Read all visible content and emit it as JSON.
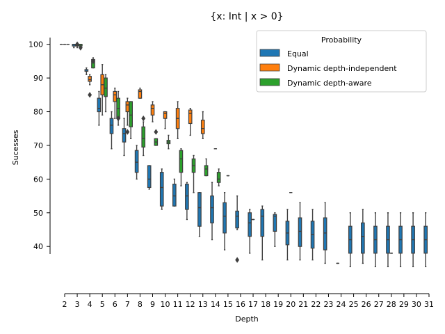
{
  "chart_data": {
    "type": "box",
    "title": "{x: Int | x > 0}",
    "xlabel": "Depth",
    "ylabel": "Sucesses",
    "ylim": [
      26,
      102
    ],
    "yticks": [
      40,
      50,
      60,
      70,
      80,
      90,
      100
    ],
    "categories": [
      "2",
      "3",
      "4",
      "5",
      "6",
      "7",
      "8",
      "9",
      "10",
      "11",
      "12",
      "13",
      "14",
      "15",
      "16",
      "17",
      "18",
      "19",
      "20",
      "21",
      "22",
      "23",
      "24",
      "25",
      "26",
      "27",
      "28",
      "29",
      "30",
      "31"
    ],
    "legend": {
      "title": "Probability",
      "placement": "top-right"
    },
    "series": [
      {
        "name": "Equal",
        "color": "#1f77b4",
        "boxes": [
          {
            "x": "2",
            "min": 100,
            "q1": 100,
            "median": 100,
            "q3": 100,
            "max": 100,
            "outliers": []
          },
          {
            "x": "3",
            "min": 99,
            "q1": 99.5,
            "median": 100,
            "q3": 100,
            "max": 100,
            "outliers": []
          },
          {
            "x": "4",
            "min": 91,
            "q1": 92,
            "median": 92,
            "q3": 92.5,
            "max": 93,
            "outliers": []
          },
          {
            "x": "5",
            "min": 76,
            "q1": 80,
            "median": 81,
            "q3": 84,
            "max": 86,
            "outliers": []
          },
          {
            "x": "6",
            "min": 69,
            "q1": 73.5,
            "median": 76,
            "q3": 78,
            "max": 80,
            "outliers": []
          },
          {
            "x": "7",
            "min": 67,
            "q1": 71,
            "median": 73.5,
            "q3": 75,
            "max": 78,
            "outliers": []
          },
          {
            "x": "8",
            "min": 60,
            "q1": 62,
            "median": 65,
            "q3": 68.5,
            "max": 70,
            "outliers": []
          },
          {
            "x": "9",
            "min": 57,
            "q1": 57.5,
            "median": 60,
            "q3": 64,
            "max": 64,
            "outliers": []
          },
          {
            "x": "10",
            "min": 51,
            "q1": 52,
            "median": 57.5,
            "q3": 62,
            "max": 63,
            "outliers": []
          },
          {
            "x": "11",
            "min": 52,
            "q1": 52,
            "median": 55,
            "q3": 58.5,
            "max": 60,
            "outliers": []
          },
          {
            "x": "12",
            "min": 48,
            "q1": 51,
            "median": 55,
            "q3": 58.5,
            "max": 59,
            "outliers": []
          },
          {
            "x": "13",
            "min": 43,
            "q1": 46,
            "median": 51.5,
            "q3": 56,
            "max": 56,
            "outliers": []
          },
          {
            "x": "14",
            "min": 42,
            "q1": 47,
            "median": 51.5,
            "q3": 55,
            "max": 59,
            "outliers": []
          },
          {
            "x": "15",
            "min": 39,
            "q1": 44,
            "median": 49,
            "q3": 53,
            "max": 56,
            "outliers": []
          },
          {
            "x": "16",
            "min": 45,
            "q1": 45.5,
            "median": 49,
            "q3": 50.5,
            "max": 55,
            "outliers": [
              36
            ]
          },
          {
            "x": "17",
            "min": 38,
            "q1": 43,
            "median": 47,
            "q3": 50,
            "max": 51,
            "outliers": []
          },
          {
            "x": "18",
            "min": 36,
            "q1": 43,
            "median": 49,
            "q3": 51,
            "max": 52,
            "outliers": []
          },
          {
            "x": "19",
            "min": 40,
            "q1": 44.5,
            "median": 49,
            "q3": 49.5,
            "max": 50,
            "outliers": []
          },
          {
            "x": "20",
            "min": 36,
            "q1": 40.5,
            "median": 44,
            "q3": 47.5,
            "max": 51,
            "outliers": []
          },
          {
            "x": "21",
            "min": 36,
            "q1": 40,
            "median": 44.5,
            "q3": 48.5,
            "max": 53,
            "outliers": []
          },
          {
            "x": "22",
            "min": 36,
            "q1": 39.5,
            "median": 43.5,
            "q3": 47.5,
            "max": 51,
            "outliers": []
          },
          {
            "x": "23",
            "min": 35,
            "q1": 39,
            "median": 44,
            "q3": 48.5,
            "max": 53,
            "outliers": []
          },
          {
            "x": "24",
            "min": 35,
            "q1": 35,
            "median": 35,
            "q3": 35,
            "max": 35,
            "outliers": []
          },
          {
            "x": "25",
            "min": 34,
            "q1": 38,
            "median": 42,
            "q3": 46,
            "max": 50,
            "outliers": []
          },
          {
            "x": "26",
            "min": 35,
            "q1": 38,
            "median": 43,
            "q3": 47,
            "max": 51,
            "outliers": []
          },
          {
            "x": "27",
            "min": 34,
            "q1": 38,
            "median": 42,
            "q3": 46,
            "max": 50,
            "outliers": []
          },
          {
            "x": "28",
            "min": 34,
            "q1": 38,
            "median": 42,
            "q3": 46,
            "max": 50,
            "outliers": []
          },
          {
            "x": "29",
            "min": 34,
            "q1": 38,
            "median": 42,
            "q3": 46,
            "max": 50,
            "outliers": []
          },
          {
            "x": "30",
            "min": 34,
            "q1": 38,
            "median": 42,
            "q3": 46,
            "max": 50,
            "outliers": []
          },
          {
            "x": "31",
            "min": 34,
            "q1": 38,
            "median": 42,
            "q3": 46,
            "max": 50,
            "outliers": []
          }
        ]
      },
      {
        "name": "Dynamic depth-independent",
        "color": "#ff7f0e",
        "boxes": [
          {
            "x": "2",
            "min": 100,
            "q1": 100,
            "median": 100,
            "q3": 100,
            "max": 100,
            "outliers": []
          },
          {
            "x": "3",
            "min": 99,
            "q1": 99.5,
            "median": 100,
            "q3": 100,
            "max": 100,
            "outliers": [
              100
            ]
          },
          {
            "x": "4",
            "min": 88,
            "q1": 89,
            "median": 89.5,
            "q3": 90.5,
            "max": 91,
            "outliers": [
              85
            ]
          },
          {
            "x": "5",
            "min": 79,
            "q1": 85,
            "median": 88,
            "q3": 91,
            "max": 94,
            "outliers": []
          },
          {
            "x": "6",
            "min": 78,
            "q1": 83,
            "median": 85,
            "q3": 86,
            "max": 87,
            "outliers": []
          },
          {
            "x": "7",
            "min": 76,
            "q1": 80,
            "median": 82,
            "q3": 83,
            "max": 84,
            "outliers": [
              74
            ]
          },
          {
            "x": "8",
            "min": 84,
            "q1": 84,
            "median": 86,
            "q3": 86.5,
            "max": 87,
            "outliers": []
          },
          {
            "x": "9",
            "min": 77,
            "q1": 79,
            "median": 81,
            "q3": 82,
            "max": 83,
            "outliers": []
          },
          {
            "x": "10",
            "min": 75,
            "q1": 78,
            "median": 79.5,
            "q3": 80,
            "max": 80,
            "outliers": []
          },
          {
            "x": "11",
            "min": 72,
            "q1": 75,
            "median": 78,
            "q3": 81,
            "max": 83,
            "outliers": []
          },
          {
            "x": "12",
            "min": 73,
            "q1": 76.5,
            "median": 79.5,
            "q3": 80.5,
            "max": 81,
            "outliers": []
          },
          {
            "x": "13",
            "min": 72,
            "q1": 73.5,
            "median": 75,
            "q3": 77.5,
            "max": 80,
            "outliers": []
          },
          {
            "x": "14",
            "min": 69,
            "q1": 69,
            "median": 69,
            "q3": 69,
            "max": 69,
            "outliers": []
          },
          {
            "x": "15",
            "min": 61,
            "q1": 61,
            "median": 61,
            "q3": 61,
            "max": 61,
            "outliers": []
          },
          {
            "x": "17",
            "min": 48,
            "q1": 48,
            "median": 48,
            "q3": 48,
            "max": 48,
            "outliers": []
          },
          {
            "x": "20",
            "min": 56,
            "q1": 56,
            "median": 56,
            "q3": 56,
            "max": 56,
            "outliers": []
          },
          {
            "x": "28",
            "min": 38,
            "q1": 38,
            "median": 38,
            "q3": 38,
            "max": 38,
            "outliers": []
          }
        ]
      },
      {
        "name": "Dynamic depth-aware",
        "color": "#2ca02c",
        "boxes": [
          {
            "x": "2",
            "min": 100,
            "q1": 100,
            "median": 100,
            "q3": 100,
            "max": 100,
            "outliers": []
          },
          {
            "x": "3",
            "min": 99,
            "q1": 99.5,
            "median": 100,
            "q3": 100,
            "max": 100,
            "outliers": [
              99
            ]
          },
          {
            "x": "4",
            "min": 93,
            "q1": 93,
            "median": 95,
            "q3": 95.5,
            "max": 96,
            "outliers": [
              95
            ]
          },
          {
            "x": "5",
            "min": 80,
            "q1": 84.5,
            "median": 87,
            "q3": 90,
            "max": 91,
            "outliers": []
          },
          {
            "x": "6",
            "min": 76,
            "q1": 78,
            "median": 81,
            "q3": 84,
            "max": 86,
            "outliers": [
              78
            ]
          },
          {
            "x": "7",
            "min": 72,
            "q1": 75.5,
            "median": 79,
            "q3": 83,
            "max": 83,
            "outliers": []
          },
          {
            "x": "8",
            "min": 67,
            "q1": 69.5,
            "median": 72,
            "q3": 75.5,
            "max": 77,
            "outliers": [
              78
            ]
          },
          {
            "x": "9",
            "min": 70,
            "q1": 70,
            "median": 71,
            "q3": 72,
            "max": 72,
            "outliers": [
              74
            ]
          },
          {
            "x": "10",
            "min": 69,
            "q1": 70.5,
            "median": 71,
            "q3": 71.5,
            "max": 73,
            "outliers": []
          },
          {
            "x": "11",
            "min": 58,
            "q1": 62,
            "median": 66,
            "q3": 68.5,
            "max": 69,
            "outliers": []
          },
          {
            "x": "12",
            "min": 56,
            "q1": 62,
            "median": 64,
            "q3": 66,
            "max": 67,
            "outliers": []
          },
          {
            "x": "13",
            "min": 61,
            "q1": 61,
            "median": 63,
            "q3": 64,
            "max": 66,
            "outliers": []
          },
          {
            "x": "14",
            "min": 58,
            "q1": 59,
            "median": 60,
            "q3": 62,
            "max": 63,
            "outliers": []
          }
        ]
      }
    ]
  }
}
